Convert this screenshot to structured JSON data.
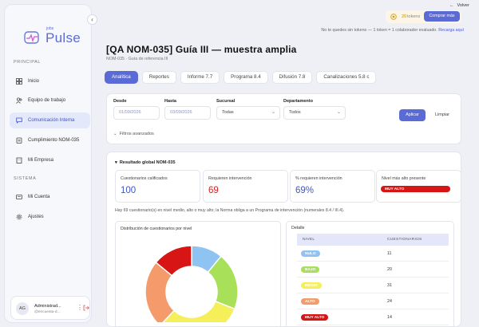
{
  "brand": {
    "small": "jobs",
    "name": "Pulse"
  },
  "sidebar": {
    "section_main": "PRINCIPAL",
    "items": [
      {
        "label": "Inicio",
        "icon": "grid-icon"
      },
      {
        "label": "Equipo de trabajo",
        "icon": "users-icon"
      },
      {
        "label": "Comunicación Interna",
        "icon": "chat-icon",
        "active": true
      },
      {
        "label": "Cumplimiento NOM-035",
        "icon": "clipboard-icon"
      },
      {
        "label": "Mi Empresa",
        "icon": "building-icon"
      }
    ],
    "section_system": "SISTEMA",
    "system_items": [
      {
        "label": "Mi Cuenta",
        "icon": "id-card-icon"
      },
      {
        "label": "Ajustes",
        "icon": "gear-icon"
      }
    ],
    "user": {
      "initials": "AG",
      "name": "Administrad...",
      "email": "@encuesta-d..."
    }
  },
  "topbar": {
    "back_label": "Volver",
    "tokens_count": "20",
    "tokens_label": "tokens",
    "buy_label": "Comprar más",
    "note": "No te quedes sin tokens — 1 token = 1 colaborador evaluado.",
    "note_link": "Recarga aquí"
  },
  "header": {
    "title": "[QA NOM-035] Guía III — muestra amplia",
    "subtitle": "NOM-035 · Guía de referencia III"
  },
  "tabs": [
    "Analítica",
    "Reportes",
    "Informe 7.7",
    "Programa 8.4",
    "Difusión 7.8",
    "Canalizaciones 5.8 c"
  ],
  "filters": {
    "from_label": "Desde",
    "from_value": "01/09/2026",
    "to_label": "Hasta",
    "to_value": "03/09/2026",
    "branch_label": "Sucursal",
    "branch_value": "Todas",
    "dept_label": "Departamento",
    "dept_value": "Todos",
    "apply_label": "Aplicar",
    "clear_label": "Limpiar",
    "advanced_label": "Filtros avanzados"
  },
  "results": {
    "title": "Resultado global NOM-035",
    "kpis": [
      {
        "label": "Cuestionarios calificados",
        "value": "100",
        "color": "#3f55c9"
      },
      {
        "label": "Requieren intervención",
        "value": "69",
        "color": "#d21f1f"
      },
      {
        "label": "% requieren intervención",
        "value": "69%",
        "color": "#3f55c9"
      },
      {
        "label": "Nivel más alto presente",
        "badge": "MUY ALTO",
        "color": "#d71515"
      }
    ],
    "note": "Hay 69 cuestionario(s) en nivel medio, alto o muy alto; la Norma obliga a un Programa de intervención (numerales 8.4 / III.4).",
    "chart_title": "Distribución de cuestionarios por nivel",
    "detail_title": "Detalle",
    "detail_cols": [
      "NIVEL",
      "CUESTIONARIOS"
    ],
    "detail_rows": [
      {
        "level": "NULO",
        "count": "11",
        "color": "#8ec3f2"
      },
      {
        "level": "BAJO",
        "count": "20",
        "color": "#a9e05a"
      },
      {
        "level": "MEDIO",
        "count": "31",
        "color": "#f5ef5a"
      },
      {
        "level": "ALTO",
        "count": "24",
        "color": "#f59a6a"
      },
      {
        "level": "MUY ALTO",
        "count": "14",
        "color": "#d71515"
      }
    ]
  },
  "chart_data": {
    "type": "pie",
    "categories": [
      "NULO",
      "BAJO",
      "MEDIO",
      "ALTO",
      "MUY ALTO"
    ],
    "values": [
      11,
      20,
      31,
      24,
      14
    ],
    "colors": [
      "#8ec3f2",
      "#a9e05a",
      "#f5ef5a",
      "#f59a6a",
      "#d71515"
    ],
    "title": "Distribución de cuestionarios por nivel",
    "donut": true
  }
}
